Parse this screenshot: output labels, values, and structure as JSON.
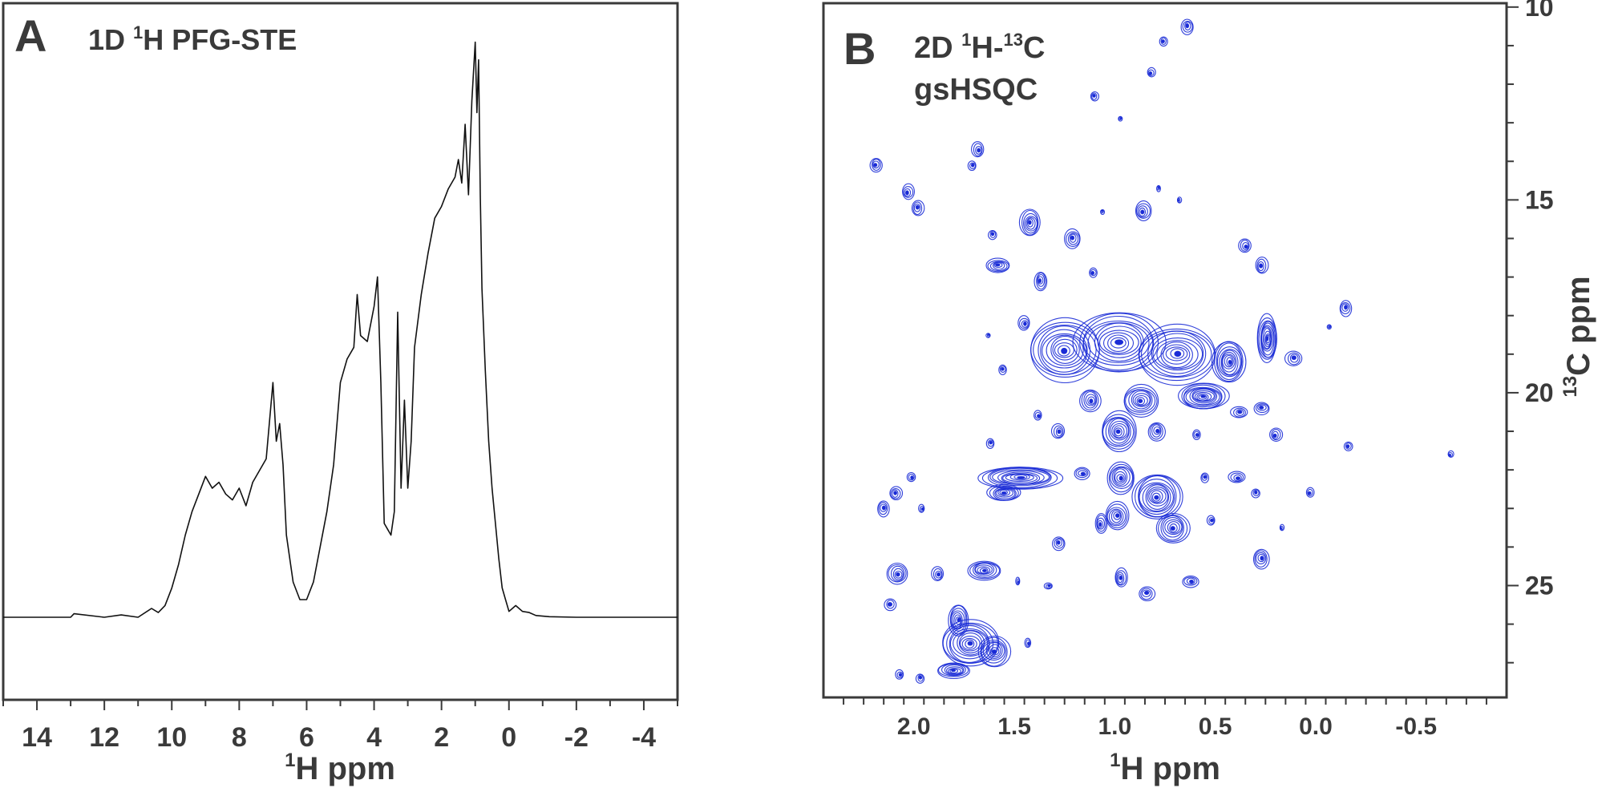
{
  "figure": {
    "panel_a": {
      "letter": "A",
      "title_prefix": "1D ",
      "title_sup": "1",
      "title_suffix": "H PFG-STE"
    },
    "panel_b": {
      "letter": "B",
      "title_prefix": "2D ",
      "title_sup1": "1",
      "title_mid": "H-",
      "title_sup2": "13",
      "title_suffix": "C",
      "title_line2": "gsHSQC"
    }
  },
  "chart_data": [
    {
      "type": "line",
      "title": "1D 1H PFG-STE",
      "panel": "A",
      "xlabel": "1H ppm",
      "xlabel_sup": "1",
      "xlabel_text": "H ppm",
      "ylabel": "",
      "xlim": [
        15,
        -5
      ],
      "x_reversed": true,
      "xticks": [
        14,
        12,
        10,
        8,
        6,
        4,
        2,
        0,
        -2,
        -4
      ],
      "xtick_labels": [
        "14",
        "12",
        "10",
        "8",
        "6",
        "4",
        "2",
        "0",
        "-2",
        "-4"
      ],
      "y_axis_shown": false,
      "line_color": "#111111",
      "series": [
        {
          "x": [
            15.0,
            13.0,
            12.9,
            12.0,
            11.5,
            11.0,
            10.6,
            10.4,
            10.2,
            10.0,
            9.8,
            9.6,
            9.4,
            9.2,
            9.0,
            8.8,
            8.6,
            8.4,
            8.2,
            8.0,
            7.8,
            7.6,
            7.4,
            7.2,
            7.0,
            6.9,
            6.8,
            6.7,
            6.6,
            6.4,
            6.2,
            6.0,
            5.8,
            5.6,
            5.4,
            5.2,
            5.0,
            4.8,
            4.6,
            4.5,
            4.4,
            4.2,
            4.0,
            3.9,
            3.8,
            3.7,
            3.6,
            3.5,
            3.4,
            3.3,
            3.2,
            3.1,
            3.0,
            2.9,
            2.8,
            2.6,
            2.4,
            2.2,
            2.0,
            1.8,
            1.6,
            1.5,
            1.4,
            1.3,
            1.2,
            1.1,
            1.0,
            0.95,
            0.9,
            0.85,
            0.8,
            0.7,
            0.6,
            0.5,
            0.4,
            0.3,
            0.2,
            0.1,
            0.0,
            -0.2,
            -0.4,
            -0.6,
            -0.8,
            -1.2,
            -2.0,
            -5.0
          ],
          "y": [
            0.0,
            0.0,
            0.006,
            0.0,
            0.004,
            0.0,
            0.015,
            0.008,
            0.02,
            0.05,
            0.09,
            0.14,
            0.18,
            0.21,
            0.24,
            0.22,
            0.23,
            0.21,
            0.2,
            0.22,
            0.19,
            0.23,
            0.25,
            0.27,
            0.4,
            0.3,
            0.33,
            0.26,
            0.14,
            0.06,
            0.03,
            0.03,
            0.06,
            0.12,
            0.18,
            0.26,
            0.4,
            0.44,
            0.46,
            0.55,
            0.48,
            0.47,
            0.53,
            0.58,
            0.4,
            0.16,
            0.15,
            0.14,
            0.18,
            0.52,
            0.22,
            0.37,
            0.22,
            0.3,
            0.46,
            0.55,
            0.62,
            0.68,
            0.7,
            0.73,
            0.75,
            0.78,
            0.74,
            0.84,
            0.72,
            0.88,
            0.98,
            0.86,
            0.95,
            0.72,
            0.56,
            0.42,
            0.3,
            0.22,
            0.16,
            0.1,
            0.05,
            0.03,
            0.01,
            0.02,
            0.01,
            0.008,
            0.003,
            0.001,
            0.0,
            0.0
          ]
        }
      ]
    },
    {
      "type": "scatter",
      "subtype": "contour",
      "title": "2D 1H-13C gsHSQC",
      "panel": "B",
      "xlabel": "1H ppm",
      "xlabel_sup": "1",
      "xlabel_text": "H ppm",
      "ylabel": "13C ppm",
      "ylabel_sup": "13",
      "ylabel_text": "C ppm",
      "xlim": [
        2.45,
        -0.95
      ],
      "ylim": [
        27.9,
        9.9
      ],
      "x_reversed": true,
      "y_reversed": true,
      "xticks": [
        2.0,
        1.5,
        1.0,
        0.5,
        0.0,
        -0.5
      ],
      "xtick_labels": [
        "2.0",
        "1.5",
        "1.0",
        "0.5",
        "0.0",
        "-0.5"
      ],
      "yticks": [
        10,
        15,
        20,
        25
      ],
      "ytick_labels": [
        "10",
        "15",
        "20",
        "25"
      ],
      "y_axis_position": "right",
      "contour_color": "#1a2bd6",
      "peaks": [
        {
          "h": 0.64,
          "c": 10.5,
          "a": 0.03,
          "b": 0.2
        },
        {
          "h": 0.76,
          "c": 10.9,
          "a": 0.02,
          "b": 0.12
        },
        {
          "h": 0.82,
          "c": 11.7,
          "a": 0.02,
          "b": 0.12
        },
        {
          "h": 1.1,
          "c": 12.3,
          "a": 0.02,
          "b": 0.12
        },
        {
          "h": 0.97,
          "c": 12.9,
          "a": 0.008,
          "b": 0.06
        },
        {
          "h": 1.68,
          "c": 13.7,
          "a": 0.03,
          "b": 0.2
        },
        {
          "h": 1.71,
          "c": 14.1,
          "a": 0.02,
          "b": 0.12
        },
        {
          "h": 2.19,
          "c": 14.1,
          "a": 0.03,
          "b": 0.18
        },
        {
          "h": 2.03,
          "c": 14.8,
          "a": 0.03,
          "b": 0.2
        },
        {
          "h": 1.98,
          "c": 15.2,
          "a": 0.03,
          "b": 0.2
        },
        {
          "h": 0.78,
          "c": 14.7,
          "a": 0.01,
          "b": 0.08
        },
        {
          "h": 1.42,
          "c": 15.6,
          "a": 0.05,
          "b": 0.35
        },
        {
          "h": 1.21,
          "c": 16.0,
          "a": 0.04,
          "b": 0.25
        },
        {
          "h": 1.61,
          "c": 15.9,
          "a": 0.02,
          "b": 0.12
        },
        {
          "h": 0.86,
          "c": 15.3,
          "a": 0.04,
          "b": 0.25
        },
        {
          "h": 0.68,
          "c": 15.0,
          "a": 0.01,
          "b": 0.08
        },
        {
          "h": 1.06,
          "c": 15.3,
          "a": 0.008,
          "b": 0.06
        },
        {
          "h": 0.35,
          "c": 16.2,
          "a": 0.03,
          "b": 0.18
        },
        {
          "h": 1.58,
          "c": 16.7,
          "a": 0.06,
          "b": 0.18
        },
        {
          "h": 1.37,
          "c": 17.1,
          "a": 0.03,
          "b": 0.25
        },
        {
          "h": 1.11,
          "c": 16.9,
          "a": 0.02,
          "b": 0.12
        },
        {
          "h": 0.27,
          "c": 16.7,
          "a": 0.03,
          "b": 0.22
        },
        {
          "h": -0.15,
          "c": 17.8,
          "a": 0.03,
          "b": 0.2
        },
        {
          "h": -0.07,
          "c": 18.3,
          "a": 0.01,
          "b": 0.06
        },
        {
          "h": 1.45,
          "c": 18.2,
          "a": 0.03,
          "b": 0.18
        },
        {
          "h": 1.63,
          "c": 18.5,
          "a": 0.01,
          "b": 0.06
        },
        {
          "h": 1.25,
          "c": 18.9,
          "a": 0.18,
          "b": 0.8
        },
        {
          "h": 0.98,
          "c": 18.7,
          "a": 0.22,
          "b": 0.8
        },
        {
          "h": 0.69,
          "c": 19.0,
          "a": 0.2,
          "b": 0.75
        },
        {
          "h": 0.43,
          "c": 19.2,
          "a": 0.08,
          "b": 0.55
        },
        {
          "h": 0.24,
          "c": 18.6,
          "a": 0.05,
          "b": 0.6
        },
        {
          "h": 0.11,
          "c": 19.1,
          "a": 0.04,
          "b": 0.2
        },
        {
          "h": 1.56,
          "c": 19.4,
          "a": 0.02,
          "b": 0.12
        },
        {
          "h": 0.56,
          "c": 20.1,
          "a": 0.12,
          "b": 0.35
        },
        {
          "h": 0.87,
          "c": 20.2,
          "a": 0.09,
          "b": 0.4
        },
        {
          "h": 1.12,
          "c": 20.2,
          "a": 0.05,
          "b": 0.3
        },
        {
          "h": 1.38,
          "c": 20.6,
          "a": 0.02,
          "b": 0.12
        },
        {
          "h": 0.38,
          "c": 20.5,
          "a": 0.04,
          "b": 0.15
        },
        {
          "h": 0.27,
          "c": 20.4,
          "a": 0.04,
          "b": 0.15
        },
        {
          "h": 0.2,
          "c": 21.1,
          "a": 0.03,
          "b": 0.18
        },
        {
          "h": 0.98,
          "c": 21.0,
          "a": 0.09,
          "b": 0.5
        },
        {
          "h": 0.79,
          "c": 21.0,
          "a": 0.04,
          "b": 0.25
        },
        {
          "h": 0.59,
          "c": 21.1,
          "a": 0.02,
          "b": 0.12
        },
        {
          "h": 1.28,
          "c": 21.0,
          "a": 0.03,
          "b": 0.2
        },
        {
          "h": 1.62,
          "c": 21.3,
          "a": 0.02,
          "b": 0.12
        },
        {
          "h": -0.16,
          "c": 21.4,
          "a": 0.02,
          "b": 0.12
        },
        {
          "h": -0.67,
          "c": 21.6,
          "a": 0.015,
          "b": 0.08
        },
        {
          "h": 1.47,
          "c": 22.2,
          "a": 0.2,
          "b": 0.3
        },
        {
          "h": 1.16,
          "c": 22.1,
          "a": 0.04,
          "b": 0.15
        },
        {
          "h": 1.55,
          "c": 22.6,
          "a": 0.08,
          "b": 0.22
        },
        {
          "h": 0.97,
          "c": 22.2,
          "a": 0.07,
          "b": 0.4
        },
        {
          "h": 0.79,
          "c": 22.7,
          "a": 0.12,
          "b": 0.6
        },
        {
          "h": 0.99,
          "c": 23.2,
          "a": 0.06,
          "b": 0.35
        },
        {
          "h": 0.71,
          "c": 23.5,
          "a": 0.08,
          "b": 0.4
        },
        {
          "h": 0.55,
          "c": 22.2,
          "a": 0.02,
          "b": 0.12
        },
        {
          "h": 0.39,
          "c": 22.2,
          "a": 0.04,
          "b": 0.15
        },
        {
          "h": 0.52,
          "c": 23.3,
          "a": 0.02,
          "b": 0.12
        },
        {
          "h": 0.3,
          "c": 22.6,
          "a": 0.02,
          "b": 0.12
        },
        {
          "h": 0.03,
          "c": 22.6,
          "a": 0.02,
          "b": 0.12
        },
        {
          "h": 2.09,
          "c": 22.6,
          "a": 0.03,
          "b": 0.18
        },
        {
          "h": 2.15,
          "c": 23.0,
          "a": 0.03,
          "b": 0.2
        },
        {
          "h": 2.01,
          "c": 22.2,
          "a": 0.02,
          "b": 0.12
        },
        {
          "h": 1.96,
          "c": 23.0,
          "a": 0.015,
          "b": 0.1
        },
        {
          "h": 1.28,
          "c": 23.9,
          "a": 0.03,
          "b": 0.18
        },
        {
          "h": 1.07,
          "c": 23.4,
          "a": 0.03,
          "b": 0.25
        },
        {
          "h": 0.17,
          "c": 23.5,
          "a": 0.01,
          "b": 0.08
        },
        {
          "h": 0.27,
          "c": 24.3,
          "a": 0.04,
          "b": 0.25
        },
        {
          "h": 2.08,
          "c": 24.7,
          "a": 0.05,
          "b": 0.28
        },
        {
          "h": 1.88,
          "c": 24.7,
          "a": 0.03,
          "b": 0.18
        },
        {
          "h": 1.65,
          "c": 24.6,
          "a": 0.08,
          "b": 0.25
        },
        {
          "h": 2.12,
          "c": 25.5,
          "a": 0.03,
          "b": 0.15
        },
        {
          "h": 0.97,
          "c": 24.8,
          "a": 0.03,
          "b": 0.25
        },
        {
          "h": 0.84,
          "c": 25.2,
          "a": 0.04,
          "b": 0.18
        },
        {
          "h": 0.62,
          "c": 24.9,
          "a": 0.04,
          "b": 0.15
        },
        {
          "h": 1.48,
          "c": 24.9,
          "a": 0.01,
          "b": 0.1
        },
        {
          "h": 1.33,
          "c": 25.0,
          "a": 0.02,
          "b": 0.08
        },
        {
          "h": 1.78,
          "c": 25.9,
          "a": 0.05,
          "b": 0.4
        },
        {
          "h": 1.72,
          "c": 26.5,
          "a": 0.14,
          "b": 0.6
        },
        {
          "h": 1.6,
          "c": 26.7,
          "a": 0.08,
          "b": 0.4
        },
        {
          "h": 1.8,
          "c": 27.2,
          "a": 0.08,
          "b": 0.2
        },
        {
          "h": 1.43,
          "c": 26.5,
          "a": 0.015,
          "b": 0.12
        },
        {
          "h": 2.07,
          "c": 27.3,
          "a": 0.02,
          "b": 0.12
        },
        {
          "h": 1.97,
          "c": 27.4,
          "a": 0.02,
          "b": 0.12
        }
      ]
    }
  ]
}
